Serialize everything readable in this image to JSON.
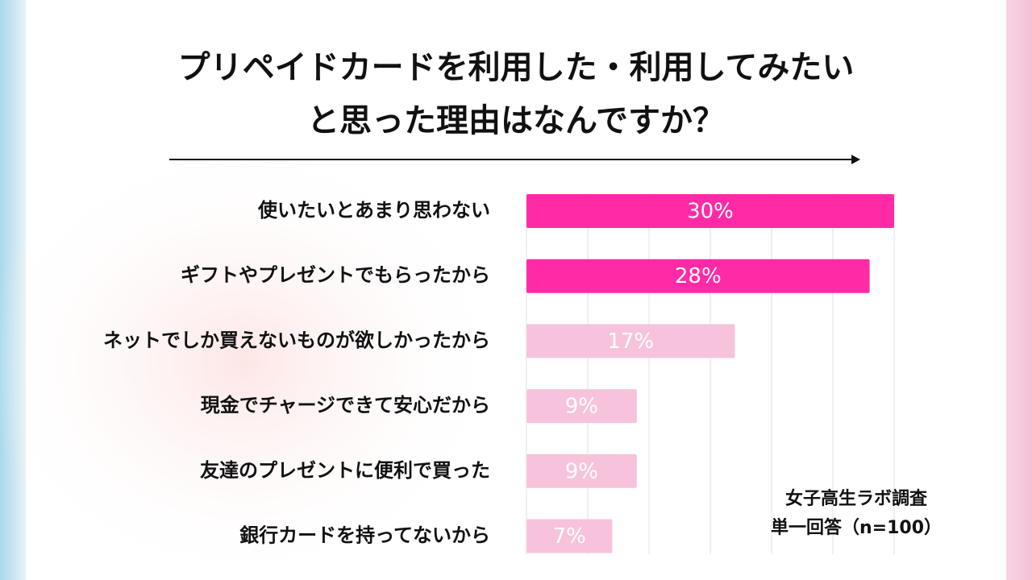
{
  "chart_data": {
    "type": "bar",
    "orientation": "horizontal",
    "title": [
      "プリペイドカードを利用した・利用してみたい",
      "と思った理由はなんですか？"
    ],
    "categories": [
      "使いたいとあまり思わない",
      "ギフトやプレゼントでもらったから",
      "ネットでしか買えないものが欲しかったから",
      "現金でチャージできて安心だから",
      "友達のプレゼントに便利で買った",
      "銀行カードを持ってないから"
    ],
    "values": [
      30,
      28,
      17,
      9,
      9,
      7
    ],
    "value_labels": [
      "30%",
      "28%",
      "17%",
      "9%",
      "9%",
      "7%"
    ],
    "colors": [
      "#ff2aa6",
      "#ff2aa6",
      "#f7c3dc",
      "#f7c3dc",
      "#f7c3dc",
      "#f7c3dc"
    ],
    "xlim": [
      0,
      30
    ],
    "xticks": [
      0,
      5,
      10,
      15,
      20,
      25,
      30
    ],
    "grid": true,
    "source": [
      "女子高生ラボ調査",
      "単一回答（n=100）"
    ]
  }
}
